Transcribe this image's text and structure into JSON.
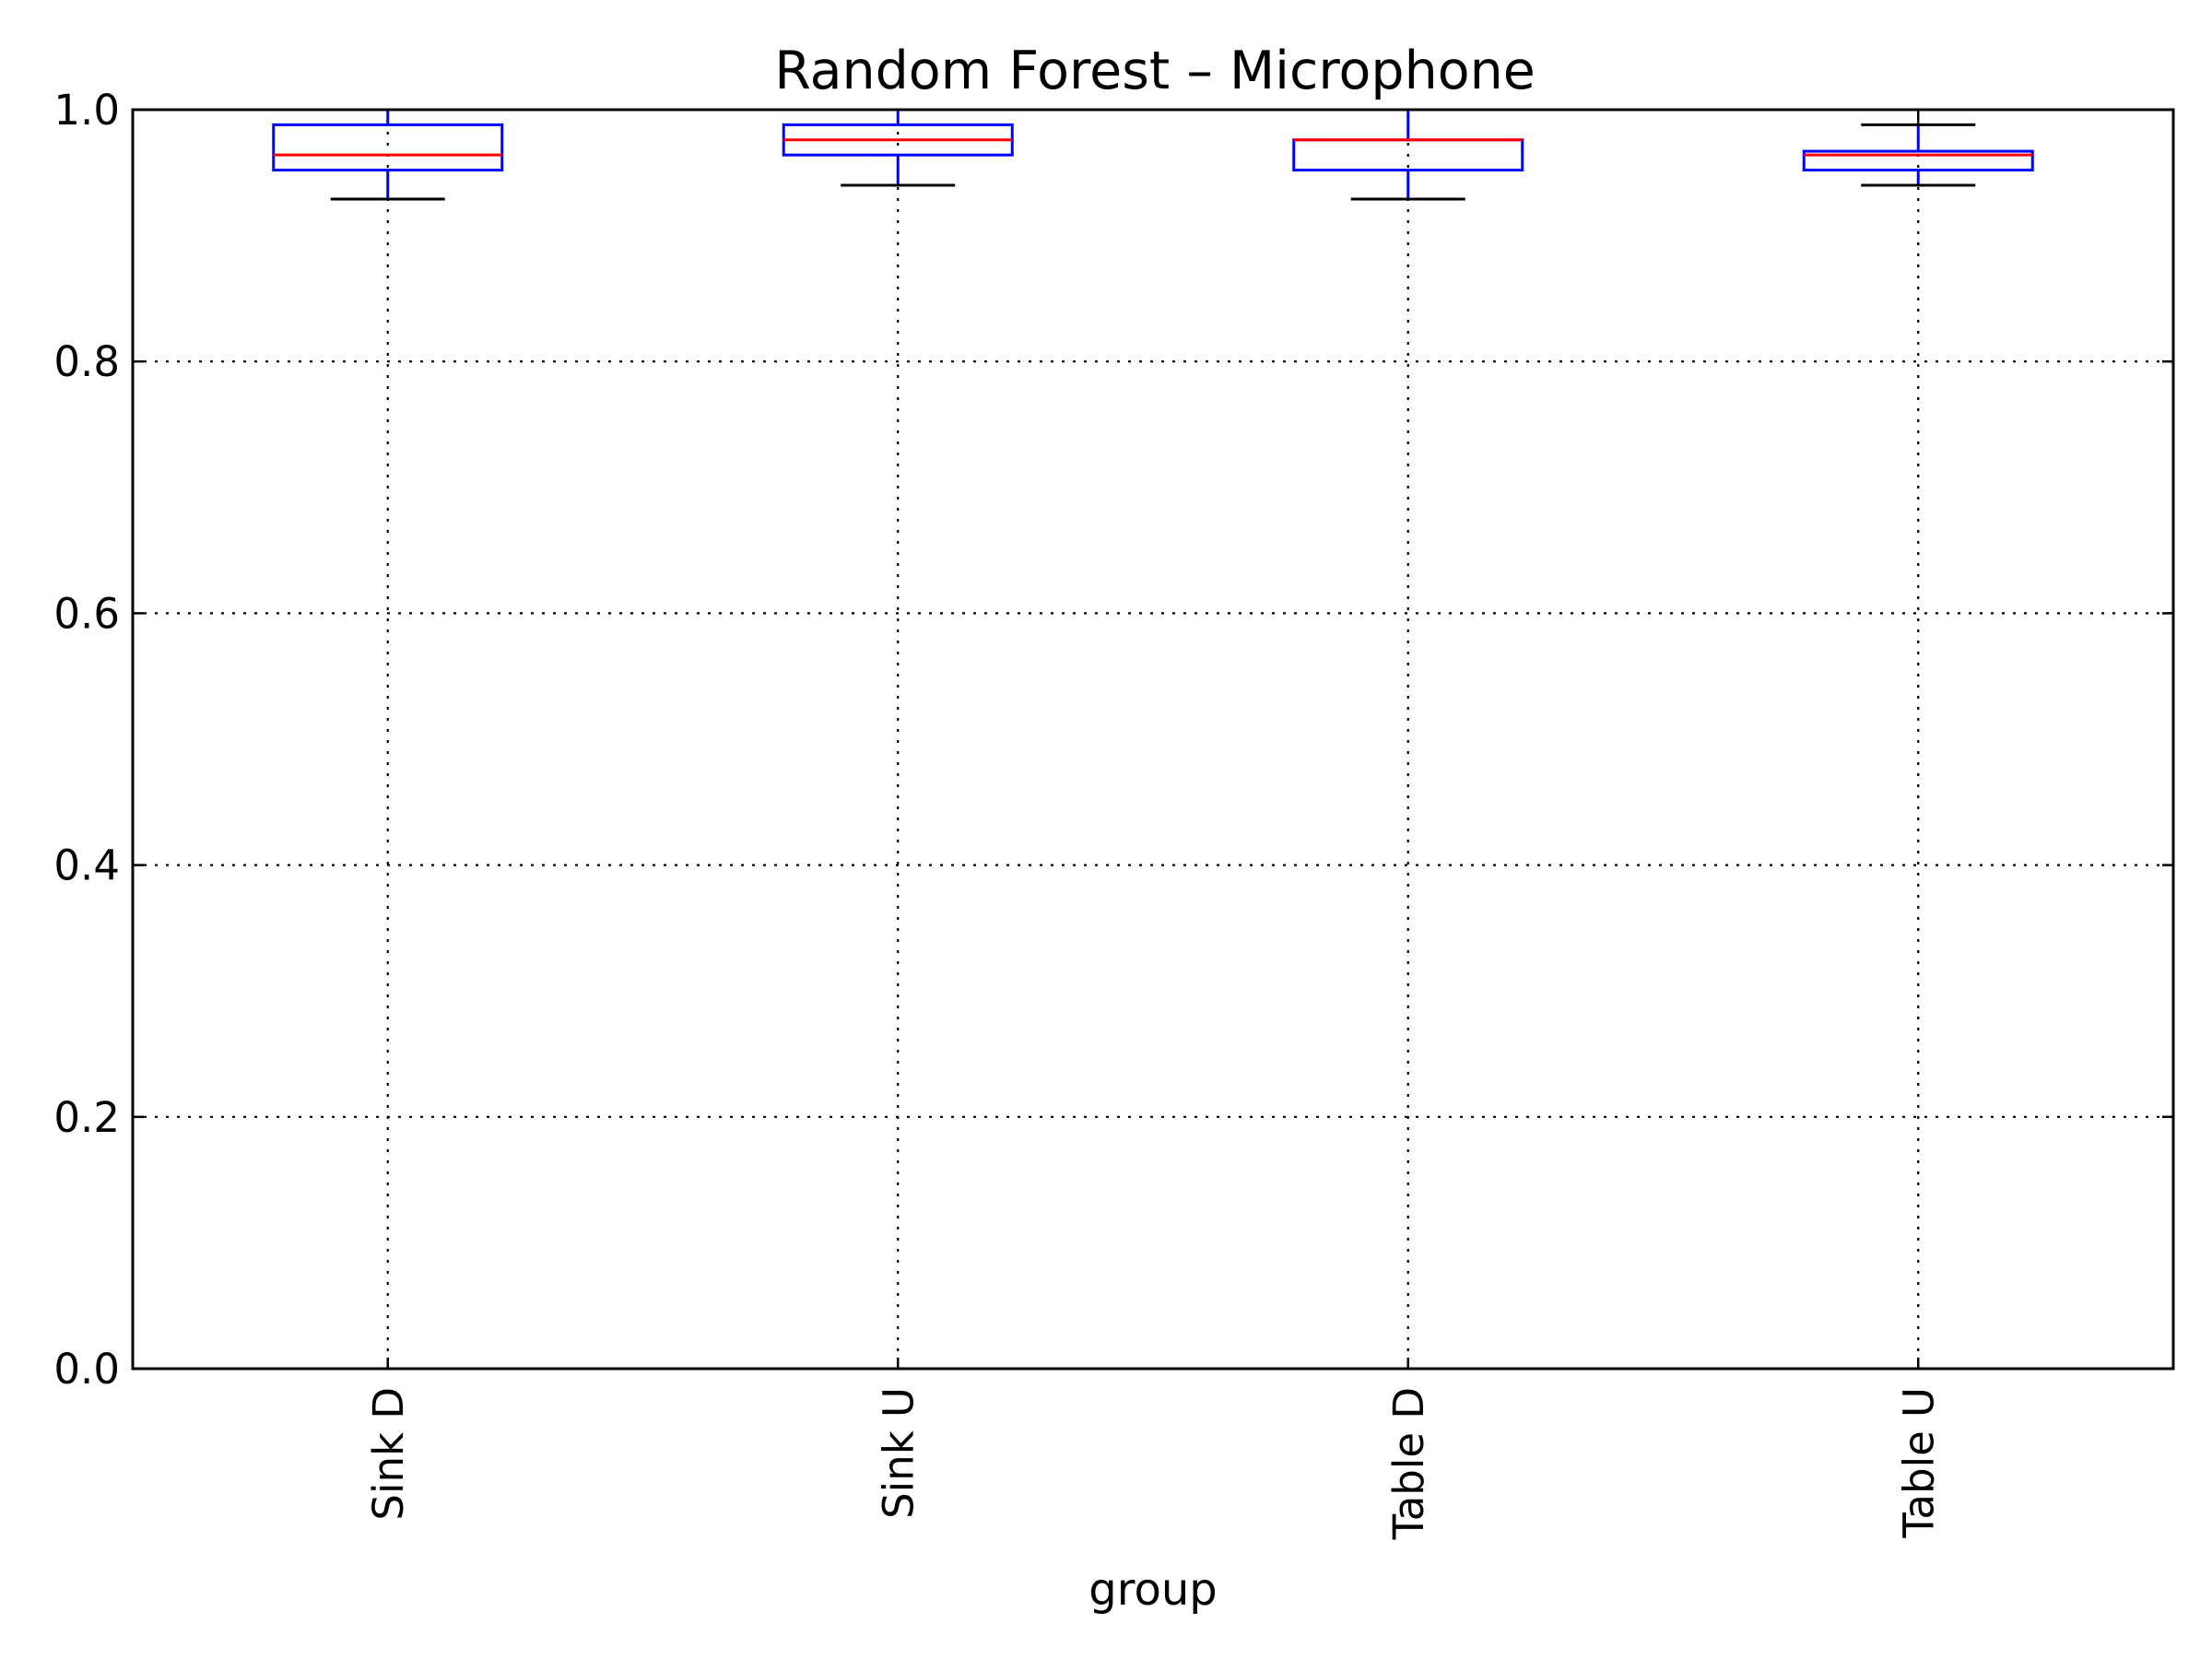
{
  "chart_data": {
    "type": "box",
    "title": "Random Forest – Microphone",
    "xlabel": "group",
    "ylabel": "",
    "ylim": [
      0.0,
      1.0
    ],
    "yticks": [
      "0.0",
      "0.2",
      "0.4",
      "0.6",
      "0.8",
      "1.0"
    ],
    "grid": true,
    "categories": [
      "Sink D",
      "Sink U",
      "Table D",
      "Table U"
    ],
    "boxes": [
      {
        "category": "Sink D",
        "whisker_low": 0.929,
        "q1": 0.952,
        "median": 0.964,
        "q3": 0.988,
        "whisker_high": 1.0
      },
      {
        "category": "Sink U",
        "whisker_low": 0.94,
        "q1": 0.964,
        "median": 0.976,
        "q3": 0.988,
        "whisker_high": 1.0
      },
      {
        "category": "Table D",
        "whisker_low": 0.929,
        "q1": 0.952,
        "median": 0.976,
        "q3": 0.976,
        "whisker_high": 1.0
      },
      {
        "category": "Table U",
        "whisker_low": 0.94,
        "q1": 0.952,
        "median": 0.964,
        "q3": 0.967,
        "whisker_high": 0.988
      }
    ],
    "colors": {
      "box": "#0000ff",
      "median": "#ff0000",
      "cap": "#000000"
    }
  }
}
